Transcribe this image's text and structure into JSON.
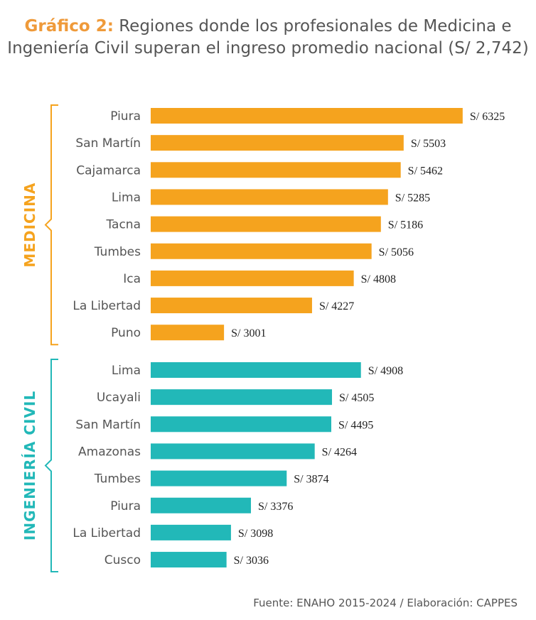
{
  "title": {
    "highlight": "Gráfico 2:",
    "text": " Regiones donde los profesionales de Medicina e Ingeniería Civil superan el ingreso promedio nacional (S/ 2,742)"
  },
  "source": "Fuente: ENAHO 2015-2024  /  Elaboración: CAPPES",
  "colors": {
    "medicina": "#f5a31e",
    "civil": "#22b8b8",
    "label": "#555555",
    "value": "#222222"
  },
  "chart_data": {
    "type": "bar",
    "orientation": "horizontal",
    "title": "Gráfico 2: Regiones donde los profesionales de Medicina e Ingeniería Civil superan el ingreso promedio nacional (S/ 2,742)",
    "value_prefix": "S/ ",
    "groups": [
      {
        "name": "MEDICINA",
        "categories": [
          "Piura",
          "San Martín",
          "Cajamarca",
          "Lima",
          "Tacna",
          "Tumbes",
          "Ica",
          "La Libertad",
          "Puno"
        ],
        "values": [
          6325,
          5503,
          5462,
          5285,
          5186,
          5056,
          4808,
          4227,
          3001
        ]
      },
      {
        "name": "INGENIERÍA CIVIL",
        "categories": [
          "Lima",
          "Ucayali",
          "San Martín",
          "Amazonas",
          "Tumbes",
          "Piura",
          "La Libertad",
          "Cusco"
        ],
        "values": [
          4908,
          4505,
          4495,
          4264,
          3874,
          3376,
          3098,
          3036
        ]
      }
    ]
  }
}
